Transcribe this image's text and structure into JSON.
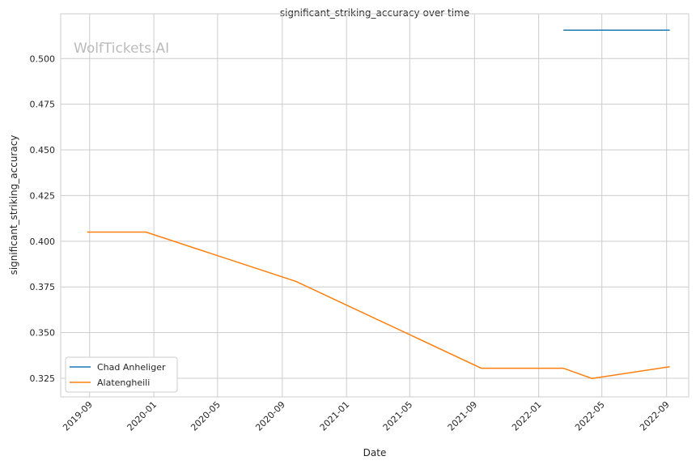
{
  "chart_data": {
    "type": "line",
    "title": "significant_striking_accuracy over time",
    "xlabel": "Date",
    "ylabel": "significant_striking_accuracy",
    "watermark": "WolfTickets.AI",
    "xlim": [
      "2019-07-08",
      "2022-10-13"
    ],
    "ylim": [
      0.3148,
      0.5245
    ],
    "x_ticks": [
      "2019-09",
      "2020-01",
      "2020-05",
      "2020-09",
      "2021-01",
      "2021-05",
      "2021-09",
      "2022-01",
      "2022-05",
      "2022-09"
    ],
    "y_ticks": [
      0.325,
      0.35,
      0.375,
      0.4,
      0.425,
      0.45,
      0.475,
      0.5
    ],
    "y_tick_labels": [
      "0.325",
      "0.350",
      "0.375",
      "0.400",
      "0.425",
      "0.450",
      "0.475",
      "0.500"
    ],
    "grid": true,
    "legend_position": "bottom-left",
    "series": [
      {
        "name": "Chad Anheliger",
        "color": "#1f77b4",
        "x": [
          "2022-02-17",
          "2022-09-07"
        ],
        "y": [
          0.5155,
          0.5155
        ]
      },
      {
        "name": "Alatengheili",
        "color": "#ff7f0e",
        "x": [
          "2019-08-27",
          "2019-12-17",
          "2020-09-27",
          "2021-09-14",
          "2022-02-17",
          "2022-04-12",
          "2022-09-07"
        ],
        "y": [
          0.405,
          0.405,
          0.378,
          0.3305,
          0.3305,
          0.3249,
          0.3313
        ]
      }
    ]
  }
}
